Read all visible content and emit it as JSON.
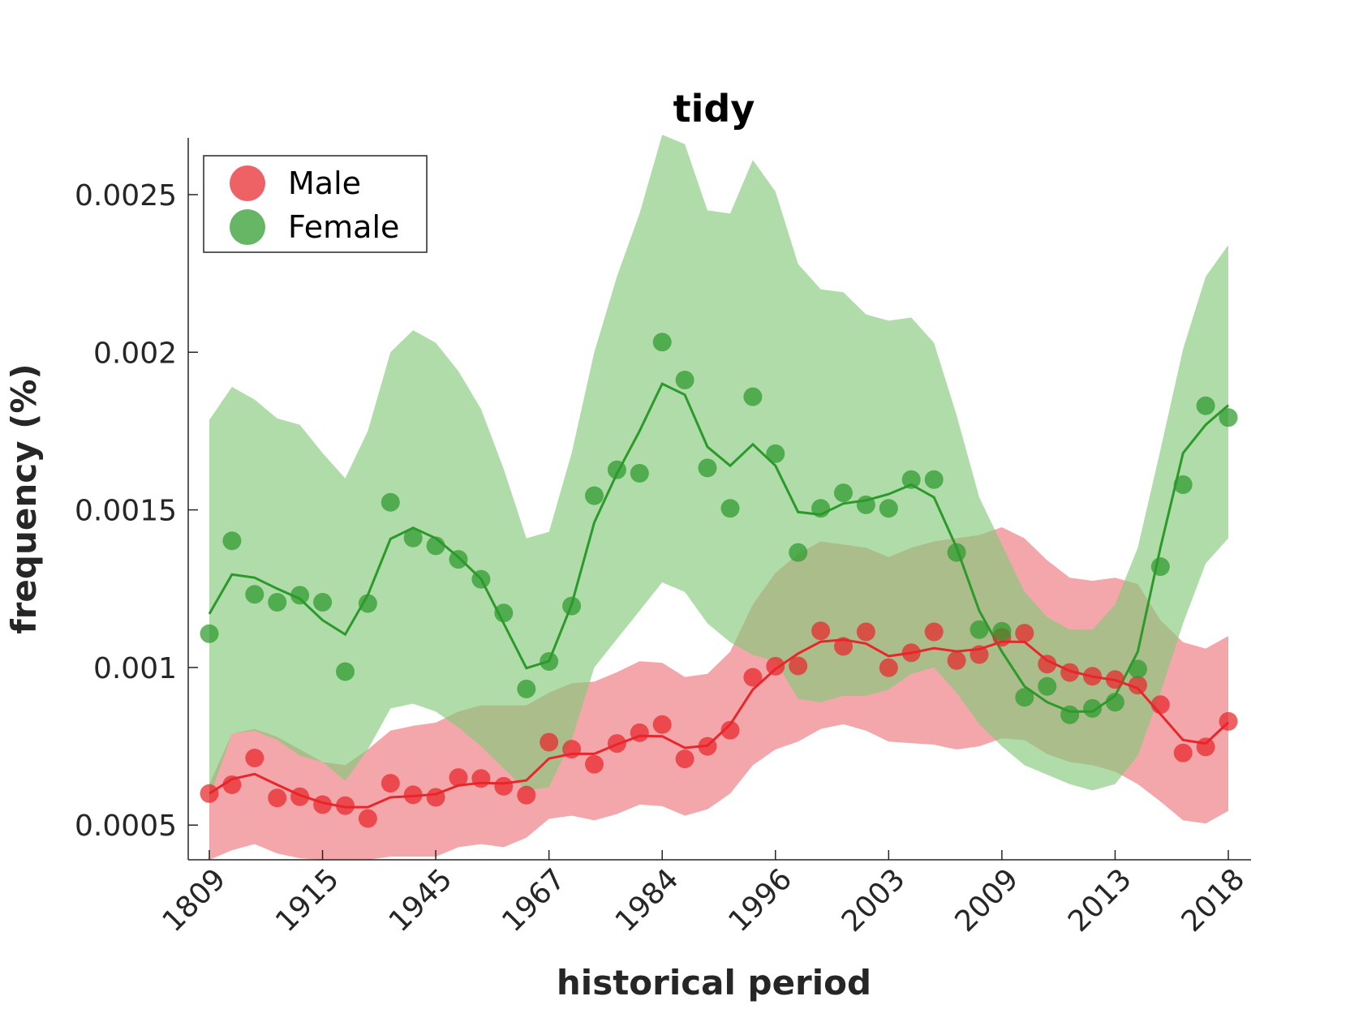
{
  "chart_data": {
    "type": "scatter",
    "title": "tidy",
    "xlabel": "historical period",
    "ylabel": "frequency (%)",
    "x_tick_labels": [
      "1809",
      "1915",
      "1945",
      "1967",
      "1984",
      "1996",
      "2003",
      "2009",
      "2013",
      "2018"
    ],
    "y_ticks": [
      0.0005,
      0.001,
      0.0015,
      0.002,
      0.0025
    ],
    "y_tick_labels": [
      "0.0005",
      "0.001",
      "0.0015",
      "0.002",
      "0.0025"
    ],
    "ylim": [
      0.00039,
      0.00268
    ],
    "grid": false,
    "legend": {
      "position": "top-left",
      "entries": [
        "Male",
        "Female"
      ]
    },
    "series": [
      {
        "name": "Male",
        "color": "#e8262b",
        "band_color": "#f08a8d",
        "points": [
          0.0006,
          0.000628,
          0.000713,
          0.000586,
          0.00059,
          0.000565,
          0.000562,
          0.000521,
          0.000633,
          0.000596,
          0.000588,
          0.000651,
          0.000648,
          0.000623,
          0.000595,
          0.000763,
          0.000741,
          0.000693,
          0.000759,
          0.000793,
          0.000819,
          0.00071,
          0.00075,
          0.000801,
          0.000969,
          0.001004,
          0.001005,
          0.001116,
          0.001067,
          0.001113,
          0.000999,
          0.001047,
          0.001113,
          0.001022,
          0.001041,
          0.001096,
          0.001109,
          0.001011,
          0.000984,
          0.000972,
          0.000962,
          0.000944,
          0.000882,
          0.000729,
          0.000748,
          0.000829
        ],
        "smooth": [
          0.0006,
          0.000646,
          0.000662,
          0.000628,
          0.000595,
          0.000571,
          0.000557,
          0.000557,
          0.000588,
          0.000592,
          0.000598,
          0.000626,
          0.000634,
          0.000632,
          0.000642,
          0.000711,
          0.000726,
          0.000726,
          0.000756,
          0.000783,
          0.000782,
          0.000745,
          0.000752,
          0.000819,
          0.00093,
          0.000995,
          0.001044,
          0.001082,
          0.001088,
          0.001076,
          0.001036,
          0.001046,
          0.001061,
          0.001051,
          0.001058,
          0.001082,
          0.001081,
          0.001022,
          0.000989,
          0.000971,
          0.00096,
          0.000934,
          0.000852,
          0.00077,
          0.000759,
          0.000826
        ],
        "band_upper": [
          0.00063,
          0.00079,
          0.000805,
          0.00078,
          0.00074,
          0.0007,
          0.00069,
          0.00074,
          0.0008,
          0.000815,
          0.000825,
          0.00086,
          0.00088,
          0.00088,
          0.00088,
          0.00092,
          0.00095,
          0.000955,
          0.000985,
          0.00102,
          0.001015,
          0.00097,
          0.00098,
          0.00105,
          0.0012,
          0.0013,
          0.00136,
          0.0014,
          0.00139,
          0.00138,
          0.00135,
          0.00138,
          0.0014,
          0.00141,
          0.00142,
          0.001445,
          0.00141,
          0.00134,
          0.001285,
          0.001275,
          0.001285,
          0.001265,
          0.00115,
          0.00108,
          0.00106,
          0.0011
        ],
        "band_lower": [
          0.00039,
          0.00042,
          0.00044,
          0.00041,
          0.000395,
          0.00039,
          0.00039,
          0.00039,
          0.0004,
          0.0004,
          0.0004,
          0.00043,
          0.00044,
          0.00043,
          0.00046,
          0.00052,
          0.00053,
          0.000515,
          0.000535,
          0.000565,
          0.00056,
          0.00053,
          0.00055,
          0.0006,
          0.00069,
          0.00074,
          0.000765,
          0.000805,
          0.00082,
          0.0008,
          0.000765,
          0.00076,
          0.000755,
          0.00074,
          0.00075,
          0.000775,
          0.00077,
          0.000725,
          0.0007,
          0.00069,
          0.00067,
          0.00063,
          0.000575,
          0.000515,
          0.000505,
          0.000545
        ]
      },
      {
        "name": "Female",
        "color": "#2b9a2b",
        "band_color": "#84c979",
        "points": [
          0.001107,
          0.001402,
          0.001232,
          0.001207,
          0.001229,
          0.001207,
          0.000987,
          0.001203,
          0.001524,
          0.001411,
          0.001386,
          0.001343,
          0.00128,
          0.001173,
          0.000932,
          0.001019,
          0.001195,
          0.001545,
          0.001627,
          0.001616,
          0.002032,
          0.001912,
          0.001633,
          0.001505,
          0.001859,
          0.001678,
          0.001365,
          0.001505,
          0.001554,
          0.001516,
          0.001505,
          0.001596,
          0.001596,
          0.001365,
          0.00112,
          0.001115,
          0.000905,
          0.00094,
          0.00085,
          0.00087,
          0.00089,
          0.000995,
          0.00132,
          0.00158,
          0.00183,
          0.001793
        ],
        "smooth": [
          0.00117,
          0.001295,
          0.001285,
          0.00125,
          0.001218,
          0.00115,
          0.001105,
          0.00123,
          0.001408,
          0.001443,
          0.00141,
          0.00135,
          0.001281,
          0.00114,
          0.000998,
          0.00102,
          0.0012,
          0.00146,
          0.001615,
          0.00175,
          0.0019,
          0.001865,
          0.0017,
          0.00164,
          0.001708,
          0.00164,
          0.001493,
          0.001485,
          0.00152,
          0.00153,
          0.00155,
          0.00158,
          0.00154,
          0.00138,
          0.00118,
          0.00105,
          0.00094,
          0.00089,
          0.00086,
          0.00086,
          0.00091,
          0.00105,
          0.00138,
          0.00168,
          0.00177,
          0.001832
        ],
        "band_upper": [
          0.001785,
          0.00189,
          0.00185,
          0.00179,
          0.00177,
          0.00168,
          0.0016,
          0.00175,
          0.002,
          0.00207,
          0.00203,
          0.00194,
          0.00182,
          0.00163,
          0.00141,
          0.00143,
          0.00168,
          0.002,
          0.00224,
          0.00244,
          0.00269,
          0.00266,
          0.00245,
          0.00244,
          0.00261,
          0.00251,
          0.00228,
          0.0022,
          0.00219,
          0.00212,
          0.0021,
          0.00211,
          0.00203,
          0.0018,
          0.00154,
          0.00139,
          0.00124,
          0.00116,
          0.00112,
          0.00112,
          0.0012,
          0.00138,
          0.00169,
          0.00201,
          0.00224,
          0.00234
        ],
        "band_lower": [
          0.000585,
          0.00079,
          0.0008,
          0.00077,
          0.00072,
          0.0007,
          0.00064,
          0.00074,
          0.00087,
          0.000885,
          0.00086,
          0.00081,
          0.00075,
          0.00068,
          0.00061,
          0.00062,
          0.00077,
          0.001,
          0.00109,
          0.00118,
          0.00127,
          0.00124,
          0.00114,
          0.00108,
          0.00104,
          0.00102,
          0.0009,
          0.00089,
          0.00091,
          0.00091,
          0.00093,
          0.00098,
          0.001,
          0.00092,
          0.00082,
          0.00075,
          0.00069,
          0.00066,
          0.00063,
          0.00061,
          0.00063,
          0.00072,
          0.00092,
          0.00114,
          0.00133,
          0.00141
        ]
      }
    ]
  }
}
